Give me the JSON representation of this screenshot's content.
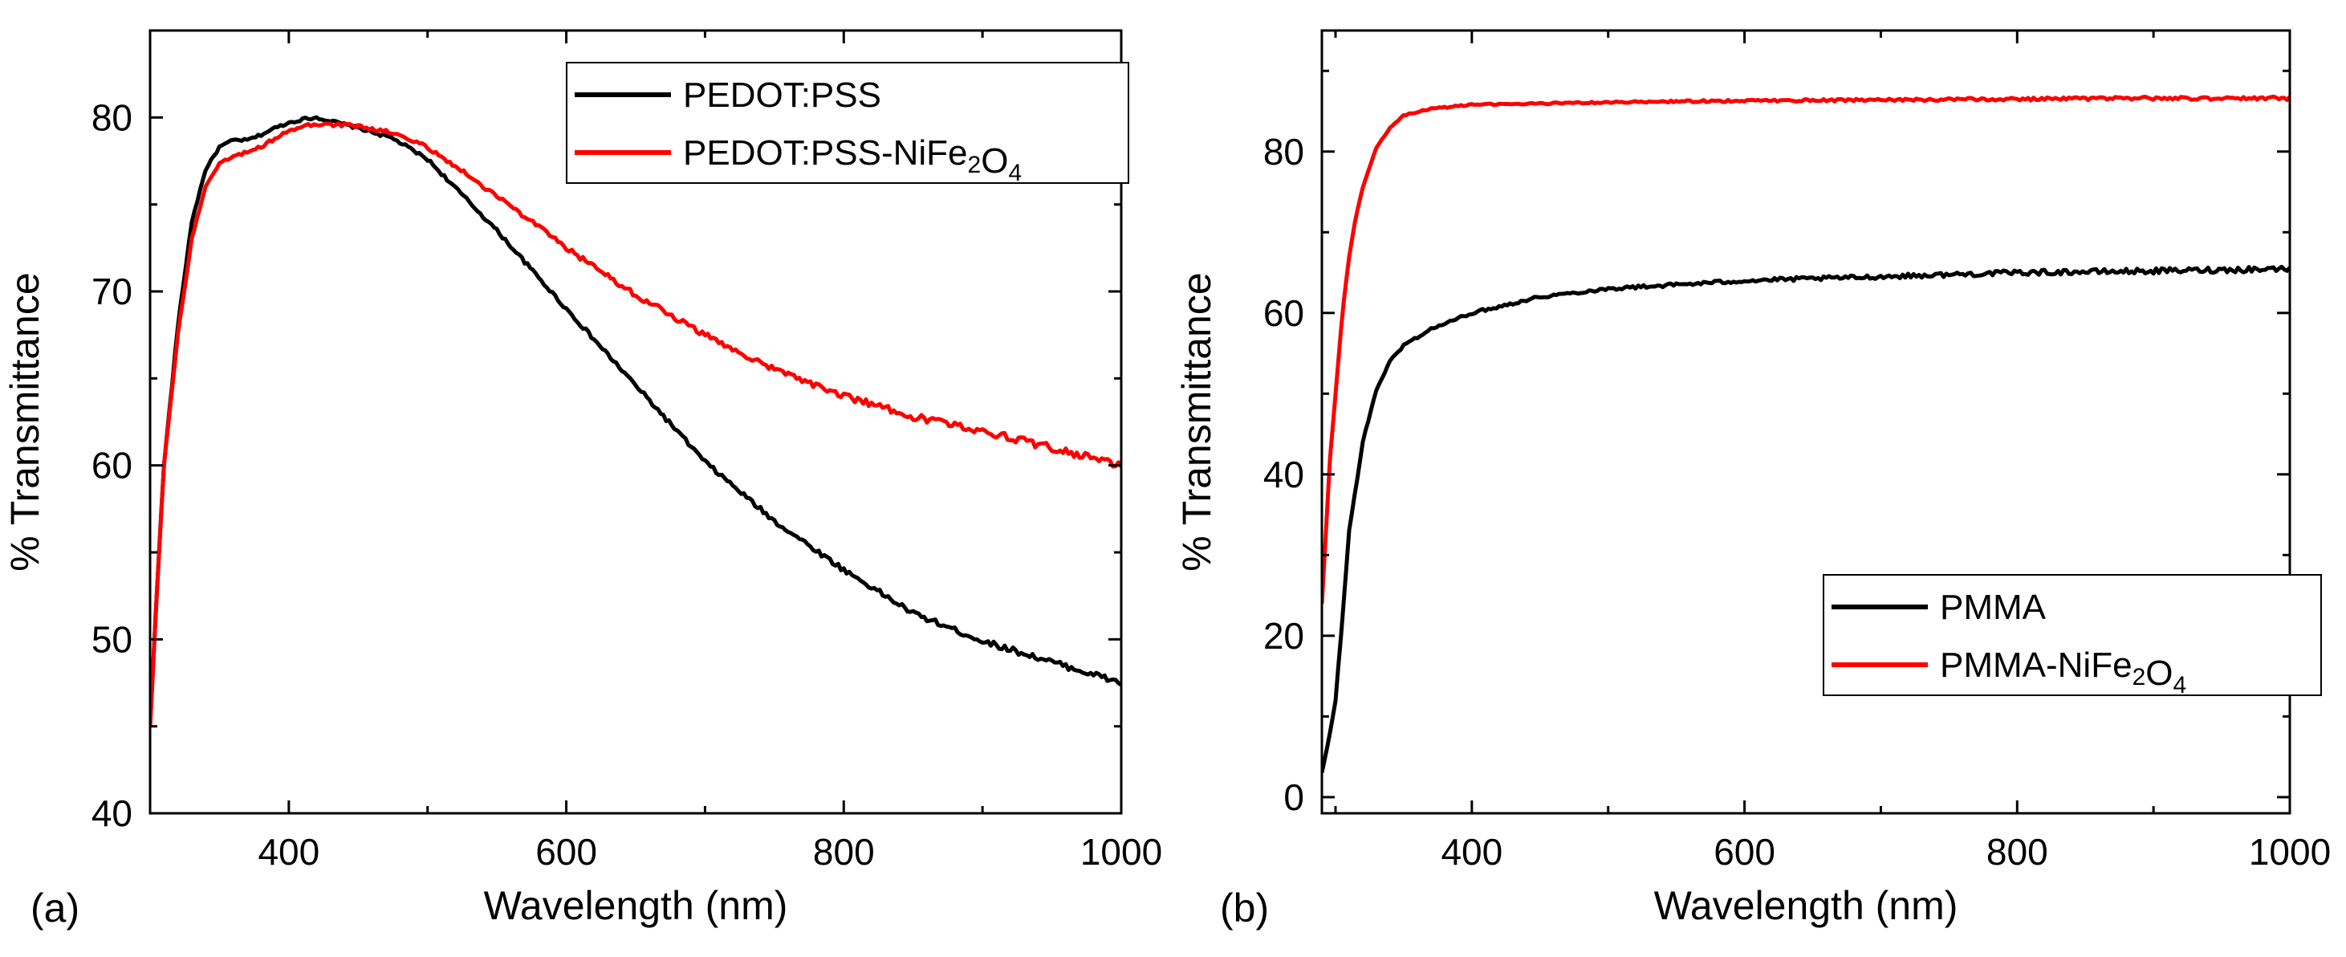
{
  "chart_data": [
    {
      "type": "line",
      "panel_label": "(a)",
      "xlabel": "Wavelength (nm)",
      "ylabel": "% Transmittance",
      "xlim": [
        300,
        1000
      ],
      "ylim": [
        40,
        85
      ],
      "xticks": [
        400,
        600,
        800,
        1000
      ],
      "yticks": [
        40,
        50,
        60,
        70,
        80
      ],
      "grid": false,
      "legend_position": "top-right",
      "series": [
        {
          "name": "PEDOT:PSS",
          "legend": {
            "base": "PEDOT:PSS",
            "parts": []
          },
          "color": "#000000",
          "x": [
            300,
            305,
            310,
            320,
            330,
            340,
            350,
            360,
            370,
            380,
            390,
            400,
            410,
            420,
            430,
            450,
            475,
            500,
            550,
            600,
            650,
            700,
            750,
            800,
            850,
            900,
            950,
            1000
          ],
          "y": [
            45,
            53,
            60,
            68,
            74,
            77,
            78.3,
            78.7,
            78.7,
            79.0,
            79.4,
            79.7,
            79.9,
            80.0,
            79.8,
            79.4,
            78.8,
            77.6,
            73.5,
            69.0,
            64.6,
            60.2,
            56.8,
            54.0,
            51.5,
            49.9,
            48.7,
            47.5
          ],
          "noise": 0.12
        },
        {
          "name": "PEDOT:PSS-NiFe2O4",
          "legend": {
            "base": "PEDOT:PSS-NiFe",
            "parts": [
              [
                "2",
                "sub"
              ],
              [
                "O",
                "base"
              ],
              [
                "4",
                "sub"
              ]
            ]
          },
          "color": "#ff0000",
          "x": [
            300,
            305,
            310,
            320,
            330,
            340,
            350,
            360,
            370,
            380,
            390,
            400,
            410,
            420,
            430,
            450,
            475,
            500,
            550,
            600,
            650,
            700,
            750,
            800,
            850,
            900,
            950,
            1000
          ],
          "y": [
            45,
            53,
            60,
            67.5,
            73,
            76,
            77.3,
            77.8,
            78.0,
            78.3,
            78.8,
            79.2,
            79.5,
            79.6,
            79.6,
            79.5,
            79.1,
            78.3,
            75.5,
            72.5,
            69.8,
            67.5,
            65.5,
            64.0,
            62.8,
            62.0,
            61.0,
            60.0
          ],
          "noise": 0.15
        }
      ]
    },
    {
      "type": "line",
      "panel_label": "(b)",
      "xlabel": "Wavelength (nm)",
      "ylabel": "% Transmittance",
      "xlim": [
        290,
        1000
      ],
      "ylim": [
        -2,
        95
      ],
      "xticks": [
        400,
        600,
        800,
        1000
      ],
      "yticks": [
        0,
        20,
        40,
        60,
        80
      ],
      "grid": false,
      "legend_position": "bottom-right",
      "series": [
        {
          "name": "PMMA",
          "legend": {
            "base": "PMMA",
            "parts": []
          },
          "color": "#000000",
          "x": [
            290,
            295,
            300,
            305,
            310,
            320,
            330,
            340,
            350,
            370,
            400,
            450,
            500,
            600,
            700,
            800,
            900,
            1000
          ],
          "y": [
            3,
            7,
            12,
            22,
            33,
            44,
            50.5,
            54,
            56,
            58,
            60,
            62,
            63,
            64,
            64.5,
            65,
            65.2,
            65.5
          ],
          "noise": 0.25
        },
        {
          "name": "PMMA-NiFe2O4",
          "legend": {
            "base": "PMMA-NiFe",
            "parts": [
              [
                "2",
                "sub"
              ],
              [
                "O",
                "base"
              ],
              [
                "4",
                "sub"
              ]
            ]
          },
          "color": "#ff0000",
          "x": [
            290,
            293,
            296,
            300,
            305,
            310,
            315,
            320,
            330,
            340,
            350,
            370,
            400,
            500,
            600,
            700,
            800,
            900,
            1000
          ],
          "y": [
            24,
            33,
            42,
            50,
            60,
            67,
            72,
            75.5,
            80.5,
            83,
            84.5,
            85.3,
            85.8,
            86.1,
            86.3,
            86.4,
            86.5,
            86.6,
            86.6
          ],
          "noise": 0.15
        }
      ]
    }
  ]
}
